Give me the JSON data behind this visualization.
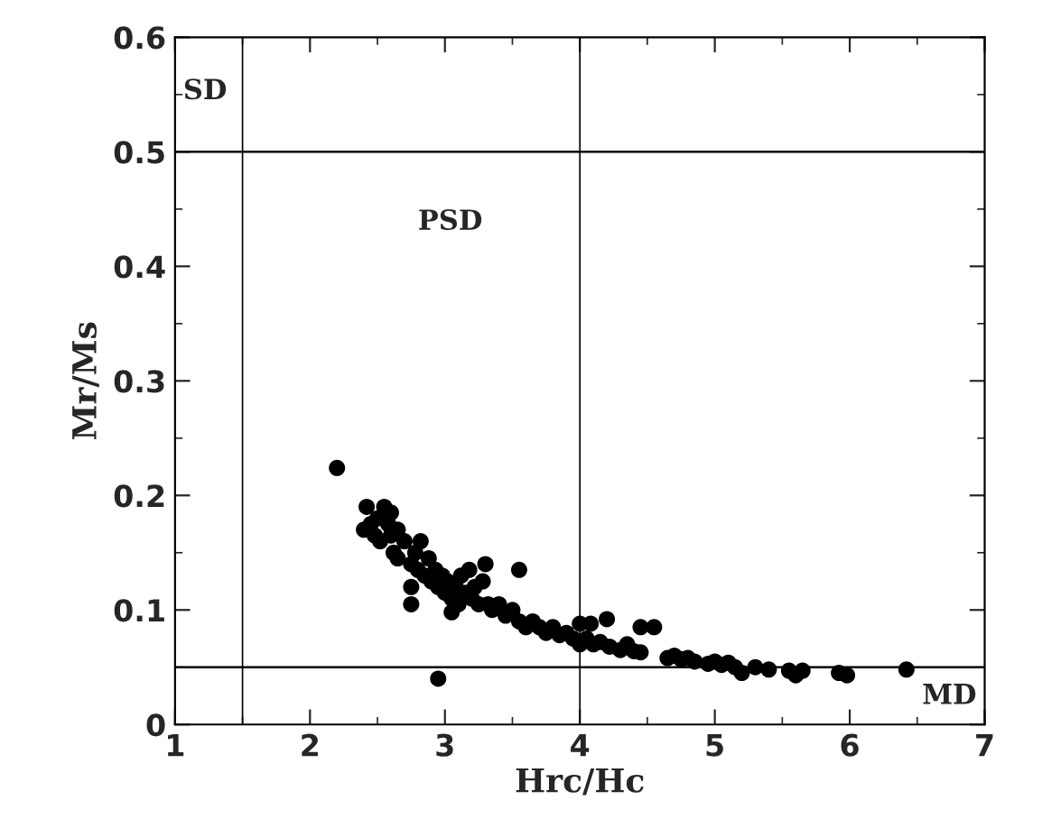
{
  "chart_data": {
    "type": "scatter",
    "xlabel": "Hrc/Hc",
    "ylabel": "Mr/Ms",
    "xlim": [
      1,
      7
    ],
    "ylim": [
      0,
      0.6
    ],
    "xticks": [
      1,
      2,
      3,
      4,
      5,
      6,
      7
    ],
    "yticks": [
      0,
      0.1,
      0.2,
      0.3,
      0.4,
      0.5,
      0.6
    ],
    "grid": false,
    "marker": "circle",
    "ref_lines": [
      {
        "axis": "x",
        "value": 1.5,
        "color": "#000000"
      },
      {
        "axis": "x",
        "value": 4,
        "color": "#000000"
      },
      {
        "axis": "y",
        "value": 0.5,
        "color": "#000000"
      },
      {
        "axis": "y",
        "value": 0.05,
        "color": "#000000"
      }
    ],
    "annotations": [
      "SD",
      "PSD",
      "MD"
    ],
    "series": [
      {
        "color": "#000000",
        "x": [
          2.2,
          2.95,
          2.4,
          2.42,
          2.45,
          2.48,
          2.5,
          2.52,
          2.55,
          2.58,
          2.6,
          2.62,
          2.6,
          2.65,
          2.7,
          2.75,
          2.78,
          2.8,
          2.82,
          2.85,
          2.88,
          2.9,
          2.93,
          2.95,
          2.98,
          3.0,
          3.02,
          3.05,
          3.08,
          3.1,
          3.12,
          3.15,
          3.18,
          3.2,
          3.22,
          3.25,
          3.28,
          3.3,
          3.32,
          3.35,
          3.4,
          3.45,
          3.5,
          3.55,
          3.55,
          3.6,
          3.65,
          3.7,
          3.75,
          3.8,
          3.85,
          3.9,
          3.95,
          4.0,
          4.0,
          4.05,
          4.08,
          4.1,
          4.15,
          4.2,
          4.22,
          4.3,
          4.35,
          4.4,
          4.45,
          4.55,
          4.45,
          4.65,
          4.7,
          4.75,
          4.8,
          4.85,
          4.95,
          5.0,
          5.05,
          5.1,
          5.15,
          5.2,
          5.3,
          5.4,
          5.55,
          5.6,
          5.65,
          5.92,
          5.98,
          6.42,
          2.75,
          3.05,
          2.65,
          2.75
        ],
        "values": [
          0.224,
          0.04,
          0.17,
          0.19,
          0.175,
          0.165,
          0.18,
          0.16,
          0.19,
          0.175,
          0.165,
          0.15,
          0.185,
          0.17,
          0.16,
          0.14,
          0.15,
          0.135,
          0.16,
          0.13,
          0.145,
          0.125,
          0.135,
          0.12,
          0.13,
          0.115,
          0.125,
          0.11,
          0.12,
          0.105,
          0.13,
          0.115,
          0.135,
          0.11,
          0.12,
          0.105,
          0.125,
          0.14,
          0.105,
          0.1,
          0.105,
          0.095,
          0.1,
          0.135,
          0.09,
          0.085,
          0.09,
          0.085,
          0.08,
          0.085,
          0.078,
          0.08,
          0.075,
          0.07,
          0.088,
          0.075,
          0.088,
          0.07,
          0.072,
          0.092,
          0.068,
          0.065,
          0.07,
          0.064,
          0.085,
          0.085,
          0.063,
          0.058,
          0.06,
          0.057,
          0.058,
          0.055,
          0.053,
          0.055,
          0.052,
          0.054,
          0.05,
          0.045,
          0.05,
          0.048,
          0.047,
          0.043,
          0.047,
          0.045,
          0.043,
          0.048,
          0.105,
          0.098,
          0.145,
          0.12
        ]
      }
    ]
  }
}
